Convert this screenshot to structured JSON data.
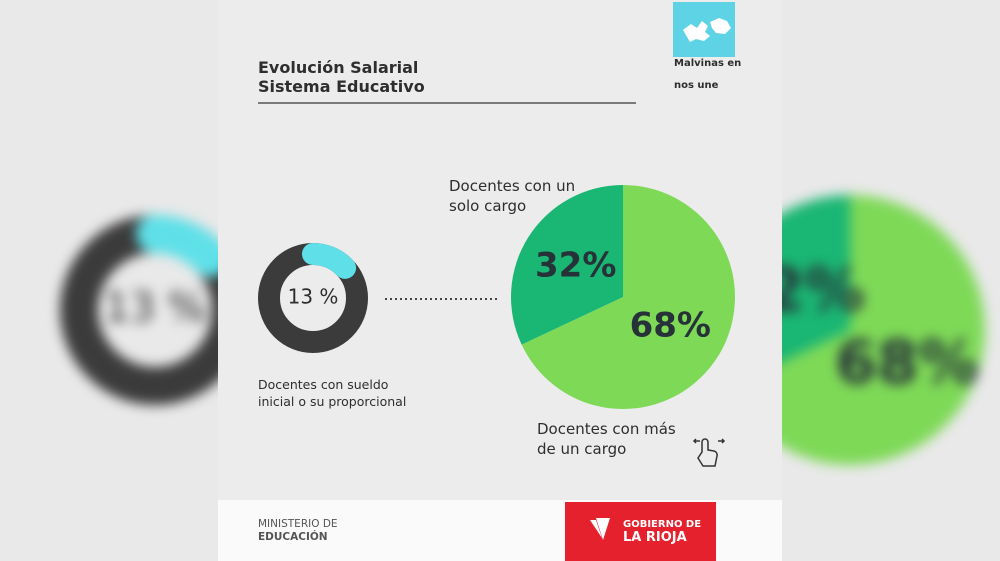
{
  "header": {
    "title": [
      "Evolución Salarial",
      "Sistema Educativo"
    ]
  },
  "logo": {
    "lines": [
      "Malvinas en",
      "nos une"
    ]
  },
  "chart_data": [
    {
      "type": "donut",
      "values": [
        13
      ],
      "value_labels": [
        "13 %"
      ],
      "label": "Docentes con sueldo inicial o su proporcional",
      "color": "#5fe0e8",
      "track_color": "#3b3b3b"
    },
    {
      "type": "pie",
      "categories": [
        "Docentes con un solo cargo",
        "Docentes con más de un cargo"
      ],
      "values": [
        32,
        68
      ],
      "value_labels": [
        "32%",
        "68%"
      ],
      "colors": [
        "#1ab673",
        "#7ed957"
      ]
    }
  ],
  "footer": {
    "ministry": [
      "MINISTERIO DE",
      "EDUCACIÓN"
    ],
    "government": [
      "GOBIERNO DE",
      "LA RIOJA"
    ]
  }
}
